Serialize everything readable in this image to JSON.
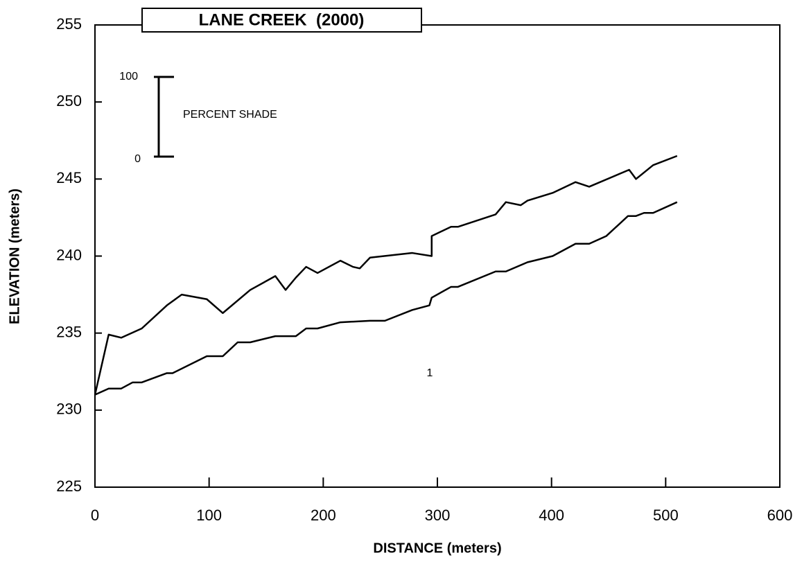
{
  "chart_data": {
    "type": "line",
    "title": "LANE CREEK  (2000)",
    "xlabel": "DISTANCE (meters)",
    "ylabel": "ELEVATION (meters)",
    "annotations": [
      "PERCENT SHADE",
      "100",
      "0",
      "1"
    ],
    "xlim": [
      0,
      600
    ],
    "xticks": [
      0,
      100,
      200,
      300,
      400,
      500,
      600
    ],
    "ylim": [
      225,
      255
    ],
    "yticks": [
      225,
      230,
      235,
      240,
      245,
      250,
      255
    ],
    "series": [
      {
        "color": "#000000",
        "x": [
          0,
          12,
          23,
          41,
          63,
          76,
          98,
          112,
          136,
          158,
          167,
          176,
          185,
          195,
          215,
          226,
          232,
          241,
          278,
          295,
          295,
          312,
          318,
          351,
          360,
          373,
          379,
          401,
          421,
          433,
          468,
          474,
          489,
          510
        ],
        "values": [
          231,
          234.9,
          234.7,
          235.3,
          236.8,
          237.5,
          237.2,
          236.3,
          237.8,
          238.7,
          237.8,
          238.6,
          239.3,
          238.9,
          239.7,
          239.3,
          239.2,
          239.9,
          240.2,
          240.0,
          241.3,
          241.9,
          241.9,
          242.7,
          243.5,
          243.3,
          243.6,
          244.1,
          244.8,
          244.5,
          245.6,
          245.0,
          245.9,
          246.5
        ]
      },
      {
        "color": "#000000",
        "x": [
          0,
          12,
          23,
          33,
          41,
          63,
          68,
          98,
          112,
          125,
          136,
          158,
          176,
          185,
          195,
          215,
          241,
          254,
          278,
          293,
          295,
          312,
          318,
          351,
          360,
          379,
          401,
          421,
          433,
          448,
          467,
          474,
          481,
          489,
          510
        ],
        "values": [
          231,
          231.4,
          231.4,
          231.8,
          231.8,
          232.4,
          232.4,
          233.5,
          233.5,
          234.4,
          234.4,
          234.8,
          234.8,
          235.3,
          235.3,
          235.7,
          235.8,
          235.8,
          236.5,
          236.8,
          237.3,
          238.0,
          238.0,
          239.0,
          239.0,
          239.6,
          240.0,
          240.8,
          240.8,
          241.3,
          242.6,
          242.6,
          242.8,
          242.8,
          243.5
        ]
      }
    ]
  }
}
